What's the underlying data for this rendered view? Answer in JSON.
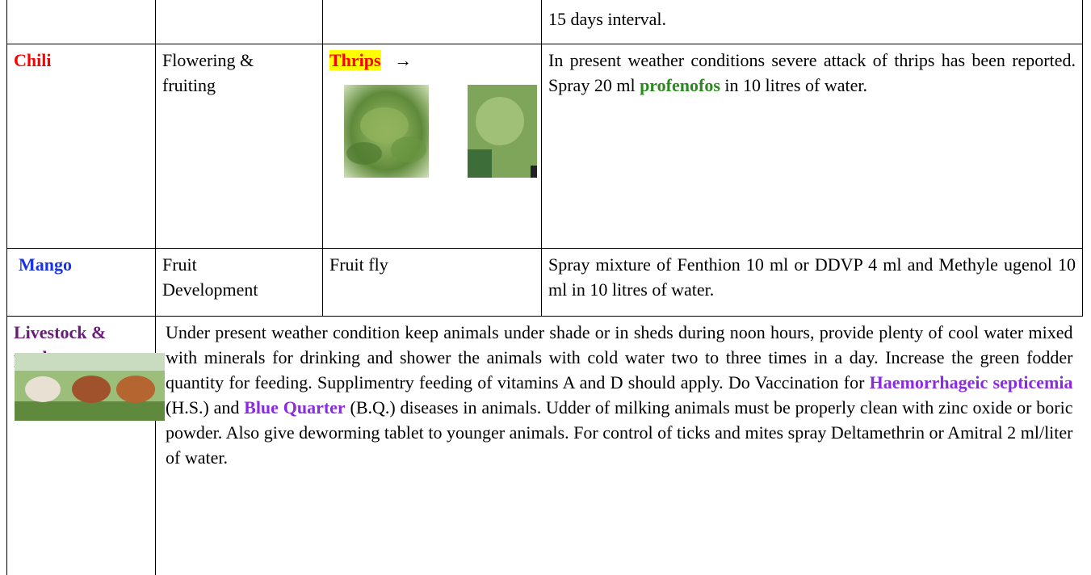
{
  "rows": [
    {
      "advisory": [
        "15 days interval."
      ]
    },
    {
      "crop": "Chili",
      "stage": "Flowering & fruiting",
      "pest": "Thrips",
      "arrow": "→",
      "advisory": [
        "In present weather conditions severe attack of thrips has been reported. Spray 20 ml ",
        "profenofos",
        " in 10 litres of water."
      ]
    },
    {
      "crop": "Mango",
      "stage": "Fruit Development",
      "pest": "Fruit fly",
      "advisory": [
        "Spray mixture of Fenthion 10 ml or DDVP 4 ml and Methyle ugenol 10 ml in 10 litres of water."
      ]
    }
  ],
  "livestock": {
    "title": "Livestock & poultry",
    "advisory": [
      "Under present weather condition keep animals under shade or in sheds during noon hours, provide plenty of cool water mixed with minerals for drinking and shower the animals with cold water two to three times in a day. Increase the green fodder quantity for feeding. Supplimentry feeding of vitamins A and D should apply. Do Vaccination for ",
      "Haemorrhageic septicemia",
      " (H.S.) and ",
      "Blue Quarter",
      " (B.Q.) diseases in animals. Udder of milking animals must be properly clean with zinc oxide or boric powder. Also give deworming tablet to younger animals. For control of ticks and mites spray Deltamethrin or Amitral 2 ml/liter of water."
    ]
  }
}
